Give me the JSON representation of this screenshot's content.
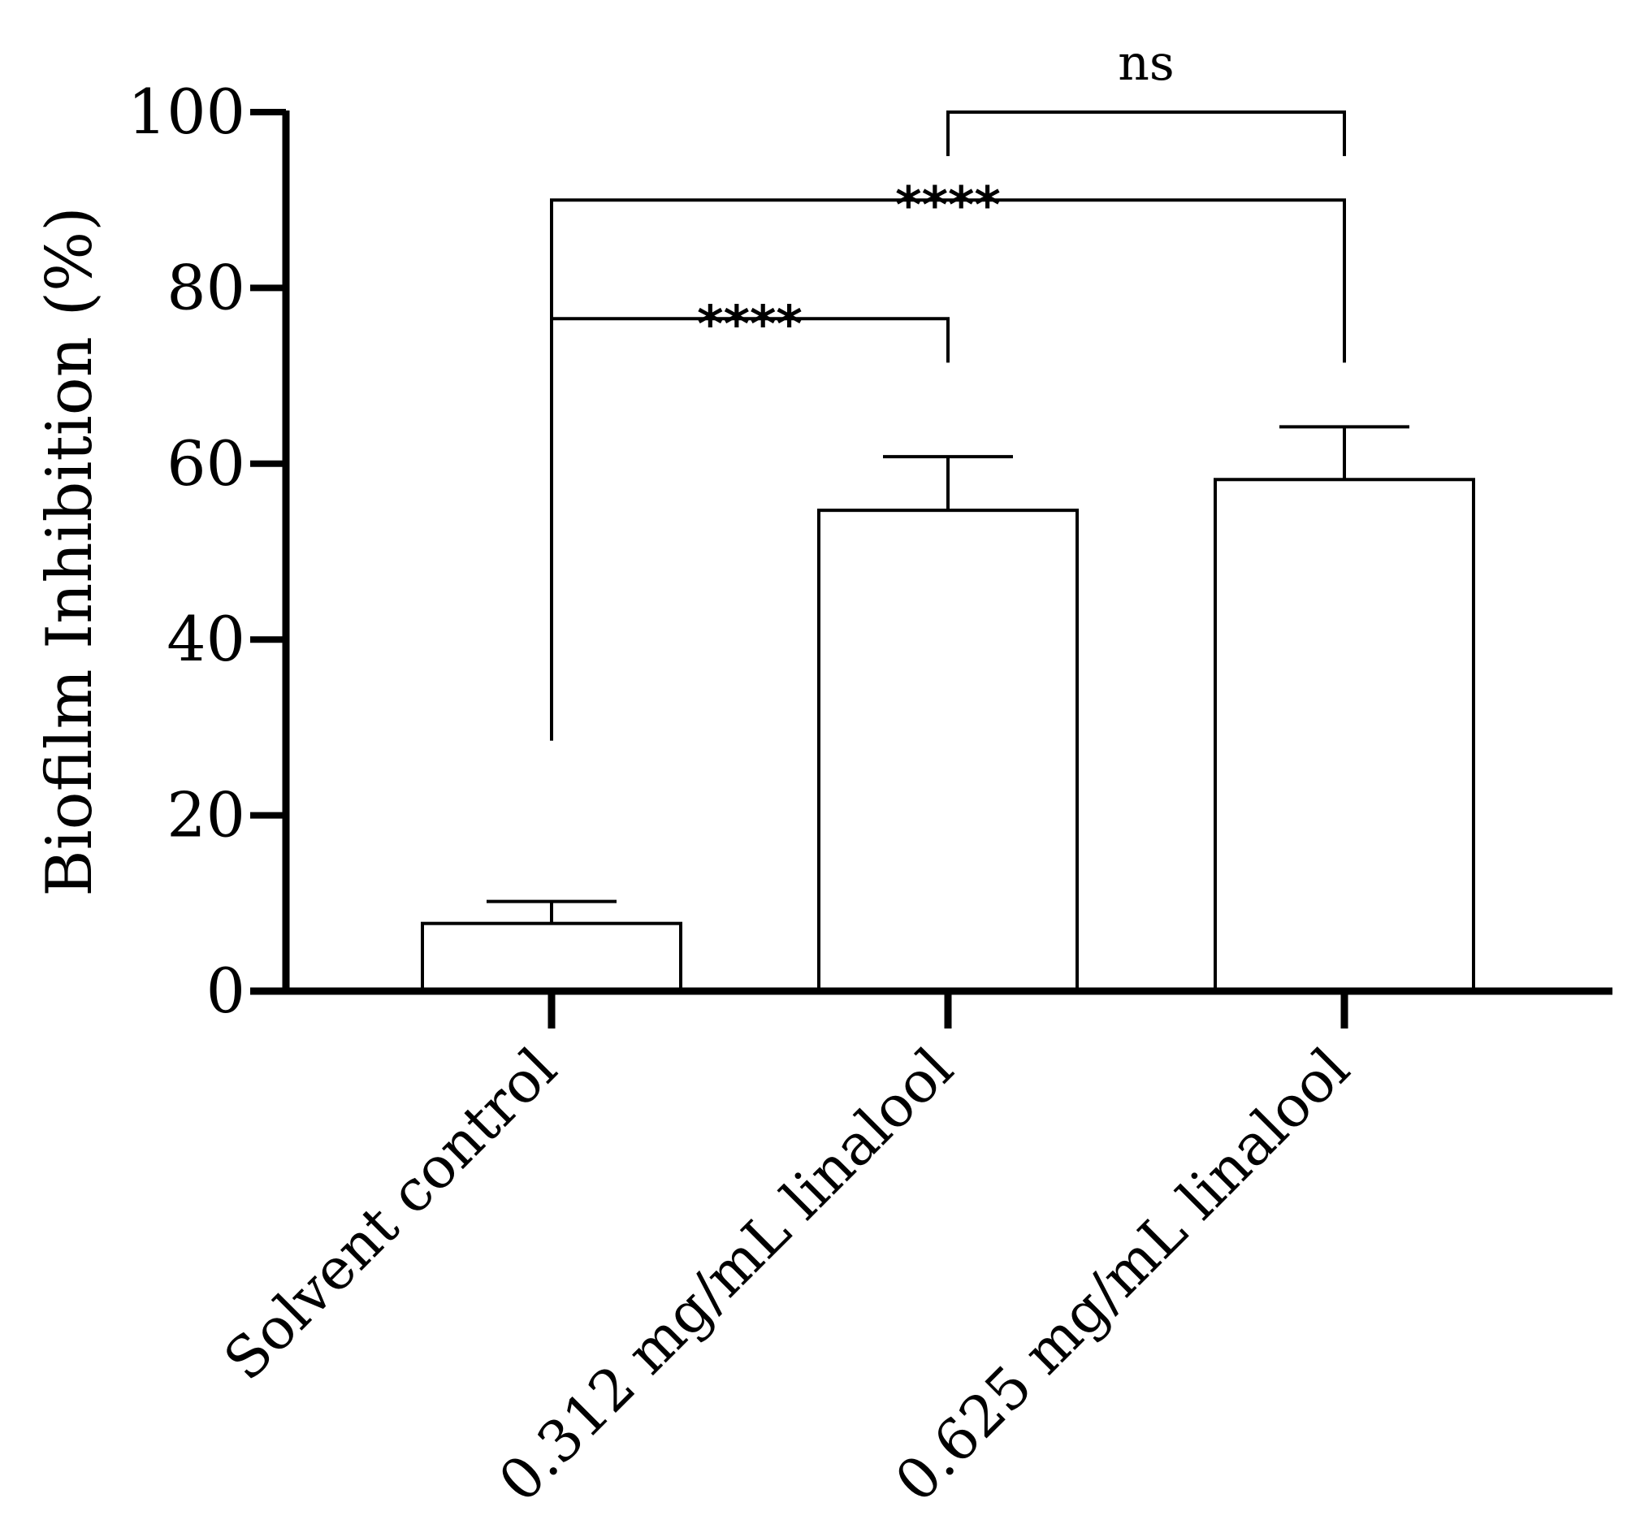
{
  "chart_data": {
    "type": "bar",
    "ylabel": "Biofilm Inhibition (%)",
    "xlabel": "",
    "ylim": [
      0,
      100
    ],
    "yticks": [
      0,
      20,
      40,
      60,
      80,
      100
    ],
    "categories": [
      "Solvent control",
      "0.312 mg/mL linalool",
      "0.625 mg/mL linalool"
    ],
    "values": [
      7.7,
      54.7,
      58.2
    ],
    "errors": [
      2.5,
      6.1,
      6.0
    ],
    "grid": false,
    "significance": [
      {
        "from": 0,
        "to": 1,
        "label": "****",
        "y": 76.5,
        "left_drop_to": 28.5,
        "right_drop_to": 71.5
      },
      {
        "from": 0,
        "to": 2,
        "label": "****",
        "y": 90,
        "left_drop_to": 28.5,
        "right_drop_to": 71.5
      },
      {
        "from": 1,
        "to": 2,
        "label": "ns",
        "y": 100,
        "left_drop_to": 95,
        "right_drop_to": 95
      }
    ]
  }
}
